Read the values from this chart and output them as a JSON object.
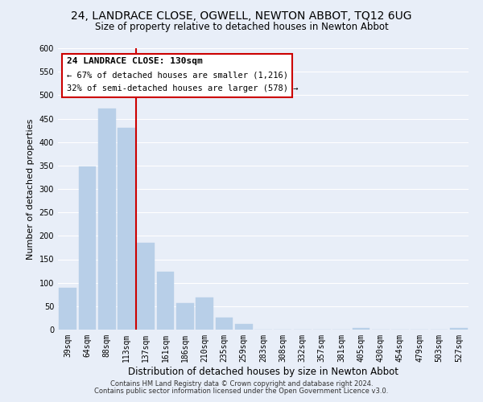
{
  "title": "24, LANDRACE CLOSE, OGWELL, NEWTON ABBOT, TQ12 6UG",
  "subtitle": "Size of property relative to detached houses in Newton Abbot",
  "xlabel": "Distribution of detached houses by size in Newton Abbot",
  "ylabel": "Number of detached properties",
  "bar_labels": [
    "39sqm",
    "64sqm",
    "88sqm",
    "113sqm",
    "137sqm",
    "161sqm",
    "186sqm",
    "210sqm",
    "235sqm",
    "259sqm",
    "283sqm",
    "308sqm",
    "332sqm",
    "357sqm",
    "381sqm",
    "405sqm",
    "430sqm",
    "454sqm",
    "479sqm",
    "503sqm",
    "527sqm"
  ],
  "bar_values": [
    90,
    348,
    472,
    430,
    185,
    123,
    57,
    68,
    25,
    12,
    0,
    0,
    0,
    0,
    0,
    3,
    0,
    0,
    0,
    0,
    3
  ],
  "bar_color": "#b8cfe8",
  "bar_edgecolor": "#b8cfe8",
  "ylim": [
    0,
    600
  ],
  "yticks": [
    0,
    50,
    100,
    150,
    200,
    250,
    300,
    350,
    400,
    450,
    500,
    550,
    600
  ],
  "vline_color": "#cc0000",
  "annotation_title": "24 LANDRACE CLOSE: 130sqm",
  "annotation_line1": "← 67% of detached houses are smaller (1,216)",
  "annotation_line2": "32% of semi-detached houses are larger (578) →",
  "annotation_box_color": "#cc0000",
  "footer_line1": "Contains HM Land Registry data © Crown copyright and database right 2024.",
  "footer_line2": "Contains public sector information licensed under the Open Government Licence v3.0.",
  "bg_color": "#e8eef8",
  "grid_color": "#ffffff",
  "title_fontsize": 10,
  "subtitle_fontsize": 8.5,
  "xlabel_fontsize": 8.5,
  "ylabel_fontsize": 8,
  "tick_fontsize": 7,
  "footer_fontsize": 6,
  "annotation_fontsize_title": 8,
  "annotation_fontsize_lines": 7.5
}
